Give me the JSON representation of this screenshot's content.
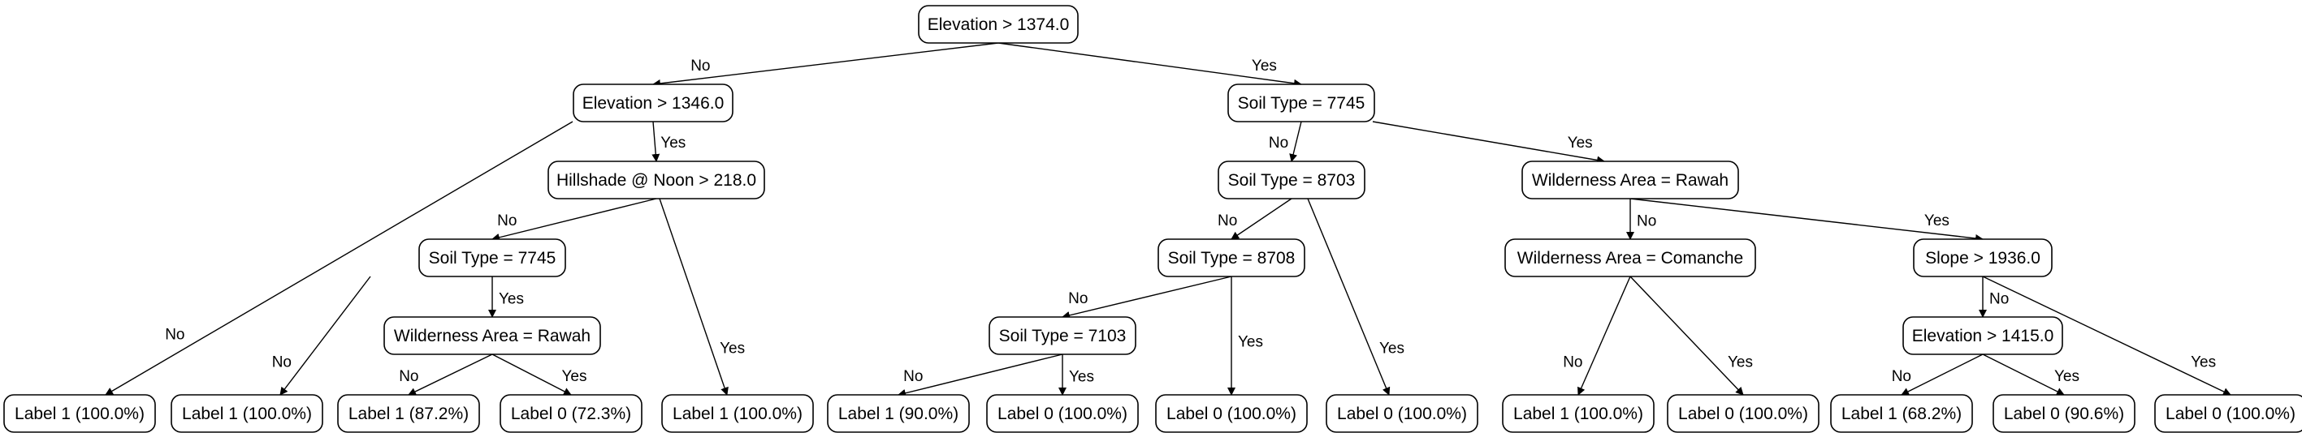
{
  "yes_label": "Yes",
  "no_label": "No",
  "nodes": [
    {
      "id": "root",
      "label": "Elevation > 1374.0",
      "no": "n_elev1346",
      "yes": "n_soil7745a"
    },
    {
      "id": "n_elev1346",
      "label": "Elevation > 1346.0",
      "no": "leaf_1",
      "yes": "n_hill"
    },
    {
      "id": "n_hill",
      "label": "Hillshade @ Noon > 218.0",
      "no": "n_soil7745b",
      "yes": "leaf_5"
    },
    {
      "id": "n_soil7745b",
      "label": "Soil Type = 7745",
      "no": "leaf_2",
      "yes": "n_wild_rawah_b"
    },
    {
      "id": "n_wild_rawah_b",
      "label": "Wilderness Area = Rawah",
      "no": "leaf_3",
      "yes": "leaf_4"
    },
    {
      "id": "n_soil7745a",
      "label": "Soil Type = 7745",
      "no": "n_soil8703",
      "yes": "n_wild_rawah_a"
    },
    {
      "id": "n_soil8703",
      "label": "Soil Type = 8703",
      "no": "n_soil8708",
      "yes": "leaf_9"
    },
    {
      "id": "n_soil8708",
      "label": "Soil Type = 8708",
      "no": "n_soil7103",
      "yes": "leaf_8"
    },
    {
      "id": "n_soil7103",
      "label": "Soil Type = 7103",
      "no": "leaf_6",
      "yes": "leaf_7"
    },
    {
      "id": "n_wild_rawah_a",
      "label": "Wilderness Area = Rawah",
      "no": "n_wild_comanche",
      "yes": "n_slope"
    },
    {
      "id": "n_wild_comanche",
      "label": "Wilderness Area = Comanche",
      "no": "leaf_10",
      "yes": "leaf_11"
    },
    {
      "id": "n_slope",
      "label": "Slope > 1936.0",
      "no": "n_elev1415",
      "yes": "leaf_14"
    },
    {
      "id": "n_elev1415",
      "label": "Elevation > 1415.0",
      "no": "leaf_12",
      "yes": "leaf_13"
    },
    {
      "id": "leaf_1",
      "label": "Label 1 (100.0%)"
    },
    {
      "id": "leaf_2",
      "label": "Label 1 (100.0%)"
    },
    {
      "id": "leaf_3",
      "label": "Label 1 (87.2%)"
    },
    {
      "id": "leaf_4",
      "label": "Label 0 (72.3%)"
    },
    {
      "id": "leaf_5",
      "label": "Label 1 (100.0%)"
    },
    {
      "id": "leaf_6",
      "label": "Label 1 (90.0%)"
    },
    {
      "id": "leaf_7",
      "label": "Label 0 (100.0%)"
    },
    {
      "id": "leaf_8",
      "label": "Label 0 (100.0%)"
    },
    {
      "id": "leaf_9",
      "label": "Label 0 (100.0%)"
    },
    {
      "id": "leaf_10",
      "label": "Label 1 (100.0%)"
    },
    {
      "id": "leaf_11",
      "label": "Label 0 (100.0%)"
    },
    {
      "id": "leaf_12",
      "label": "Label 1 (68.2%)"
    },
    {
      "id": "leaf_13",
      "label": "Label 0 (90.6%)"
    },
    {
      "id": "leaf_14",
      "label": "Label 0 (100.0%)"
    }
  ]
}
